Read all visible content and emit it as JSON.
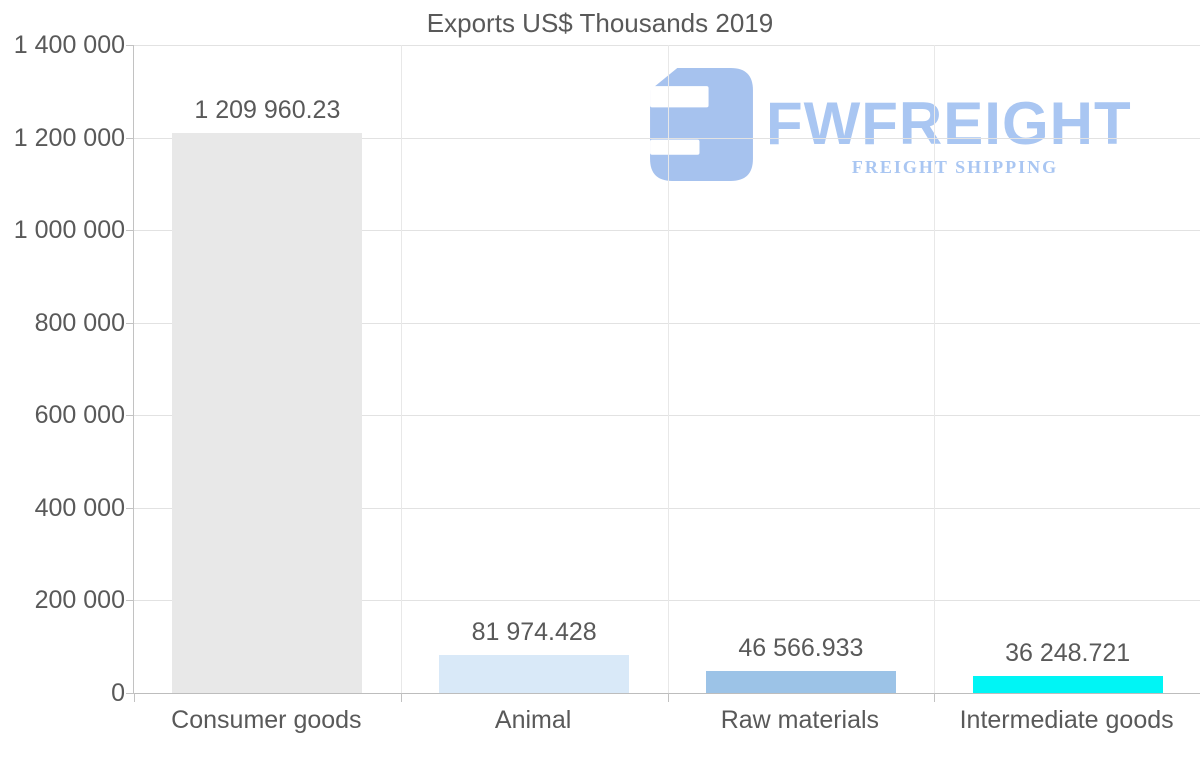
{
  "chart": {
    "title": "Exports US$ Thousands 2019"
  },
  "chart_data": {
    "type": "bar",
    "title": "Exports US$ Thousands 2019",
    "categories": [
      "Consumer goods",
      "Animal",
      "Raw materials",
      "Intermediate goods"
    ],
    "values": [
      1209960.23,
      81974.428,
      46566.933,
      36248.721
    ],
    "value_labels": [
      "1 209 960.23",
      "81 974.428",
      "46 566.933",
      "36 248.721"
    ],
    "bar_colors": [
      "#e8e8e8",
      "#d9e9f8",
      "#9cc3e7",
      "#00f5f5"
    ],
    "xlabel": "",
    "ylabel": "",
    "ylim": [
      0,
      1400000
    ],
    "yticks": [
      {
        "value": 0,
        "label": "0"
      },
      {
        "value": 200000,
        "label": "200 000"
      },
      {
        "value": 400000,
        "label": "400 000"
      },
      {
        "value": 600000,
        "label": "600 000"
      },
      {
        "value": 800000,
        "label": "800 000"
      },
      {
        "value": 1000000,
        "label": "1 000 000"
      },
      {
        "value": 1200000,
        "label": "1 200 000"
      },
      {
        "value": 1400000,
        "label": "1 400 000"
      }
    ],
    "grid": "both",
    "legend": "none"
  },
  "logo": {
    "brand": "FWFREIGHT",
    "tagline": "FREIGHT SHIPPING",
    "text_color": "#a9c6f2",
    "icon_color": "#a6c2ee",
    "icon": "fwfreight-logo-icon"
  },
  "colors": {
    "background": "#ffffff",
    "text": "#595959",
    "gridline_h": "#e2e2e2",
    "gridline_v": "#e8e8e8",
    "axis_line": "#c2c2c2"
  }
}
